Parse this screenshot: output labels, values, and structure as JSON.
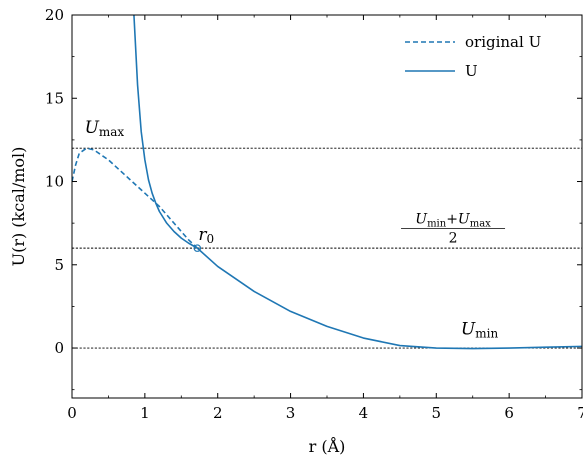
{
  "chart_data": {
    "type": "line",
    "xlabel": "r (Å)",
    "ylabel": "U(r) (kcal/mol)",
    "xlim": [
      0,
      7
    ],
    "ylim": [
      -3,
      20
    ],
    "xticks": [
      "0",
      "1",
      "2",
      "3",
      "4",
      "5",
      "6",
      "7"
    ],
    "yticks": [
      "0",
      "5",
      "10",
      "15",
      "20"
    ],
    "grid": false,
    "legend_position": "top-right",
    "series": [
      {
        "name": "original U",
        "style": "dashed",
        "color": "#1f77b4",
        "x": [
          0.0,
          0.05,
          0.1,
          0.2,
          0.3,
          0.4,
          0.5,
          0.6,
          0.7,
          0.8,
          0.9,
          1.0,
          1.1,
          1.2,
          1.3,
          1.4,
          1.5,
          1.6,
          1.72
        ],
        "y": [
          10.0,
          11.0,
          11.7,
          12.0,
          11.9,
          11.6,
          11.3,
          10.9,
          10.5,
          10.1,
          9.7,
          9.3,
          8.9,
          8.5,
          8.0,
          7.5,
          7.0,
          6.5,
          6.0
        ]
      },
      {
        "name": "U",
        "style": "solid",
        "color": "#1f77b4",
        "x": [
          0.85,
          0.9,
          0.95,
          1.0,
          1.05,
          1.1,
          1.15,
          1.2,
          1.3,
          1.4,
          1.5,
          1.6,
          1.72,
          2.0,
          2.5,
          3.0,
          3.5,
          4.0,
          4.5,
          5.0,
          5.5,
          6.0,
          6.5,
          7.0
        ],
        "y": [
          20.0,
          15.8,
          13.0,
          11.3,
          10.1,
          9.3,
          8.7,
          8.2,
          7.5,
          7.0,
          6.6,
          6.3,
          6.0,
          4.9,
          3.4,
          2.2,
          1.3,
          0.6,
          0.15,
          0.0,
          -0.03,
          0.0,
          0.05,
          0.1
        ]
      }
    ],
    "reference_lines": [
      {
        "y": 12.0,
        "label_main": "U",
        "label_sub": "max",
        "label_x": 0.2,
        "label_y": 12.8
      },
      {
        "y": 6.0,
        "label_frac_num": "U",
        "label_frac_num_sub1": "min",
        "label_plus": "+",
        "label_frac_num2": "U",
        "label_frac_num_sub2": "max",
        "label_frac_den": "2",
        "label_x": 5.2,
        "label_y": 7.0
      },
      {
        "y": 0.0,
        "label_main": "U",
        "label_sub": "min",
        "label_x": 5.75,
        "label_y": 0.5
      }
    ],
    "marker": {
      "x": 1.72,
      "y": 6.0,
      "label_main": "r",
      "label_sub": "0"
    }
  }
}
